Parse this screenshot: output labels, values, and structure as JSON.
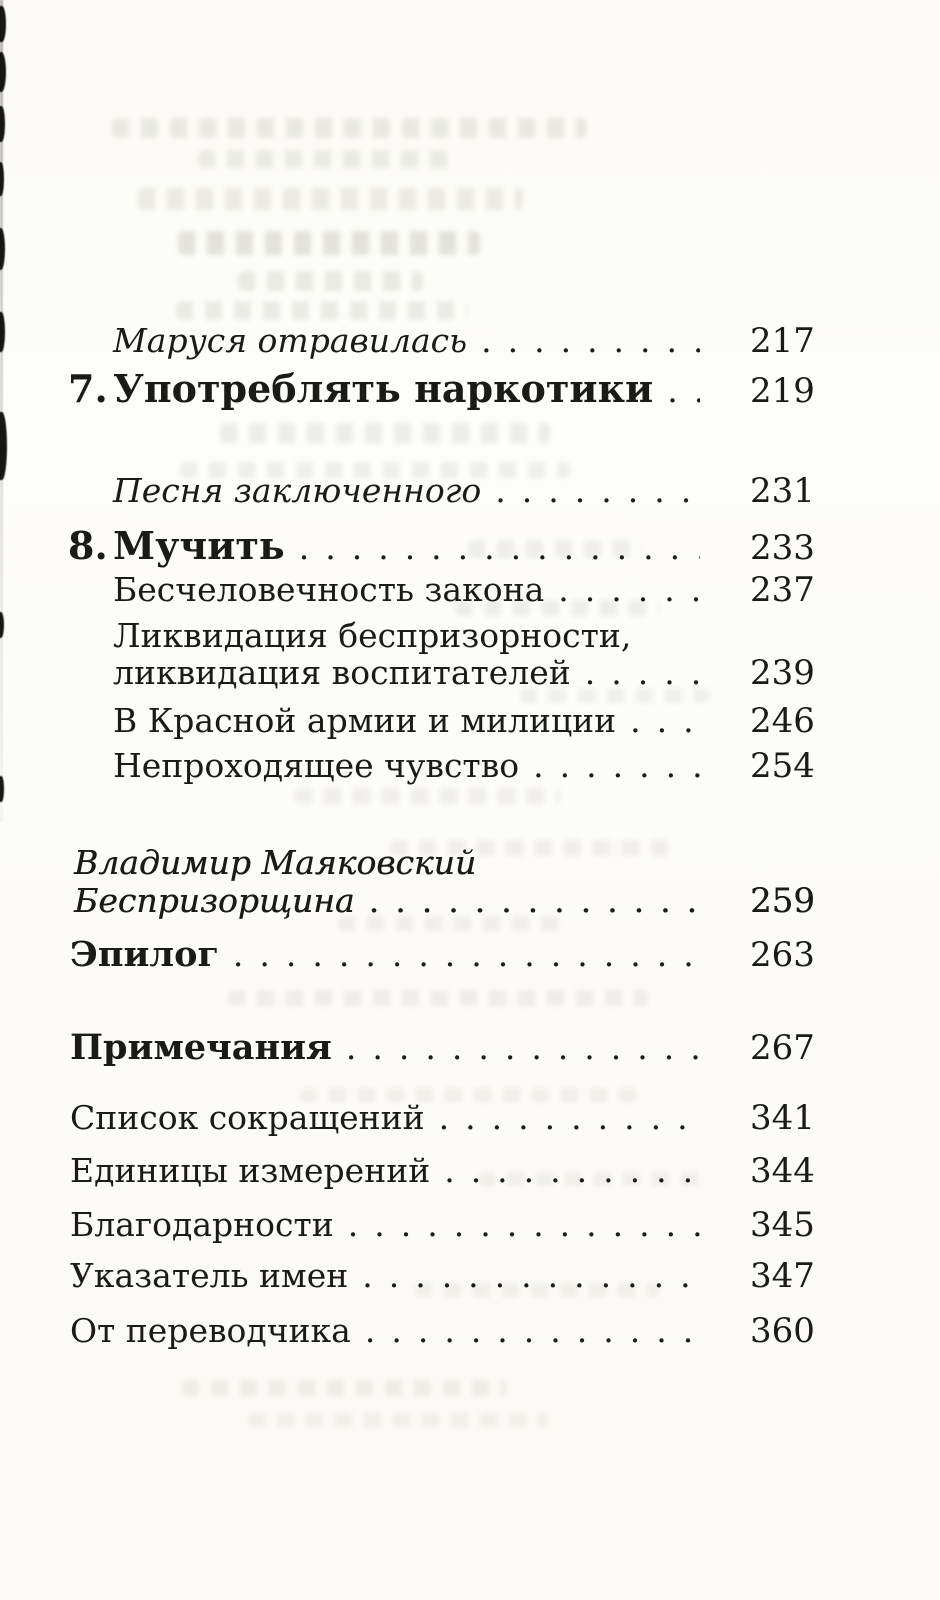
{
  "page": {
    "kind": "scanned book page — table of contents (Оглавление)",
    "language": "ru"
  },
  "colors": {
    "ink": "#1a1a19",
    "paper": "#fcfbf8",
    "ghost_bleedthrough": "#8d8b81"
  },
  "toc": {
    "entries": [
      {
        "style": "item-italic",
        "title": "Маруся отравилась",
        "page": "217"
      },
      {
        "style": "chapter",
        "number": "7.",
        "title": "Употреблять наркотики",
        "page": "219"
      },
      {
        "style": "item-italic",
        "title": "Песня заключенного",
        "page": "231"
      },
      {
        "style": "chapter",
        "number": "8.",
        "title": "Мучить",
        "page": "233"
      },
      {
        "style": "item",
        "title": "Бесчеловечность закона",
        "page": "237"
      },
      {
        "style": "item",
        "title": "Ликвидация беспризорности,",
        "page": null
      },
      {
        "style": "item",
        "title": "ликвидация воспитателей",
        "page": "239"
      },
      {
        "style": "item",
        "title": "В Красной армии и милиции",
        "page": "246"
      },
      {
        "style": "item",
        "title": "Непроходящее чувство",
        "page": "254"
      },
      {
        "style": "preface",
        "title": "Владимир Маяковский",
        "page": null
      },
      {
        "style": "preface",
        "title": "Беспризорщина",
        "page": "259"
      },
      {
        "style": "section",
        "title": "Эпилог",
        "page": "263"
      },
      {
        "style": "section",
        "title": "Примечания",
        "page": "267"
      },
      {
        "style": "plain",
        "title": "Список сокращений",
        "page": "341"
      },
      {
        "style": "plain",
        "title": "Единицы измерений",
        "page": "344"
      },
      {
        "style": "plain",
        "title": "Благодарности",
        "page": "345"
      },
      {
        "style": "plain",
        "title": "Указатель имен",
        "page": "347"
      },
      {
        "style": "plain",
        "title": "От переводчика",
        "page": "360"
      }
    ]
  }
}
